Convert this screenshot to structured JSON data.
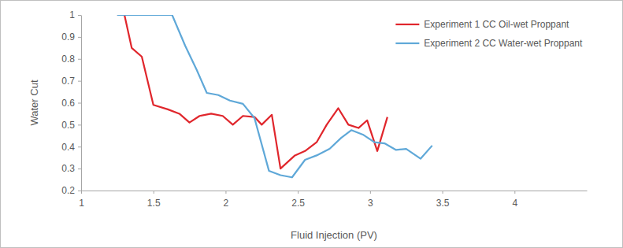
{
  "chart_data": {
    "type": "line",
    "x_label": "Fluid Injection (PV)",
    "y_label": "Water Cut",
    "xlim": [
      1,
      4.5
    ],
    "xticks": [
      1,
      1.5,
      2,
      2.5,
      3,
      3.5,
      4
    ],
    "ylim": [
      0.2,
      1
    ],
    "yticks": [
      0.2,
      0.3,
      0.4,
      0.5,
      0.6,
      0.7,
      0.8,
      0.9,
      1
    ],
    "grid": false,
    "legend": "upper right",
    "series": [
      {
        "name": "Experiment 1 CC Oil-wet Proppant",
        "color": "#e0262c",
        "x": [
          1.25,
          1.3,
          1.35,
          1.42,
          1.5,
          1.6,
          1.68,
          1.75,
          1.82,
          1.9,
          1.98,
          2.05,
          2.12,
          2.2,
          2.25,
          2.32,
          2.38,
          2.48,
          2.55,
          2.63,
          2.7,
          2.78,
          2.85,
          2.92,
          2.98,
          3.05,
          3.12
        ],
        "values": [
          1,
          1,
          0.85,
          0.81,
          0.59,
          0.57,
          0.55,
          0.51,
          0.54,
          0.55,
          0.54,
          0.5,
          0.54,
          0.535,
          0.5,
          0.545,
          0.3,
          0.36,
          0.38,
          0.42,
          0.5,
          0.575,
          0.5,
          0.485,
          0.52,
          0.38,
          0.535
        ]
      },
      {
        "name": "Experiment 2 CC Water-wet Proppant",
        "color": "#5fa8d8",
        "x": [
          1.25,
          1.63,
          1.72,
          1.8,
          1.87,
          1.95,
          2.03,
          2.12,
          2.2,
          2.3,
          2.38,
          2.46,
          2.55,
          2.63,
          2.72,
          2.8,
          2.87,
          2.95,
          3.03,
          3.1,
          3.18,
          3.25,
          3.35,
          3.43
        ],
        "values": [
          1,
          1,
          0.86,
          0.75,
          0.645,
          0.635,
          0.61,
          0.595,
          0.53,
          0.29,
          0.27,
          0.26,
          0.34,
          0.36,
          0.39,
          0.44,
          0.475,
          0.455,
          0.42,
          0.415,
          0.385,
          0.39,
          0.345,
          0.405
        ]
      }
    ]
  }
}
